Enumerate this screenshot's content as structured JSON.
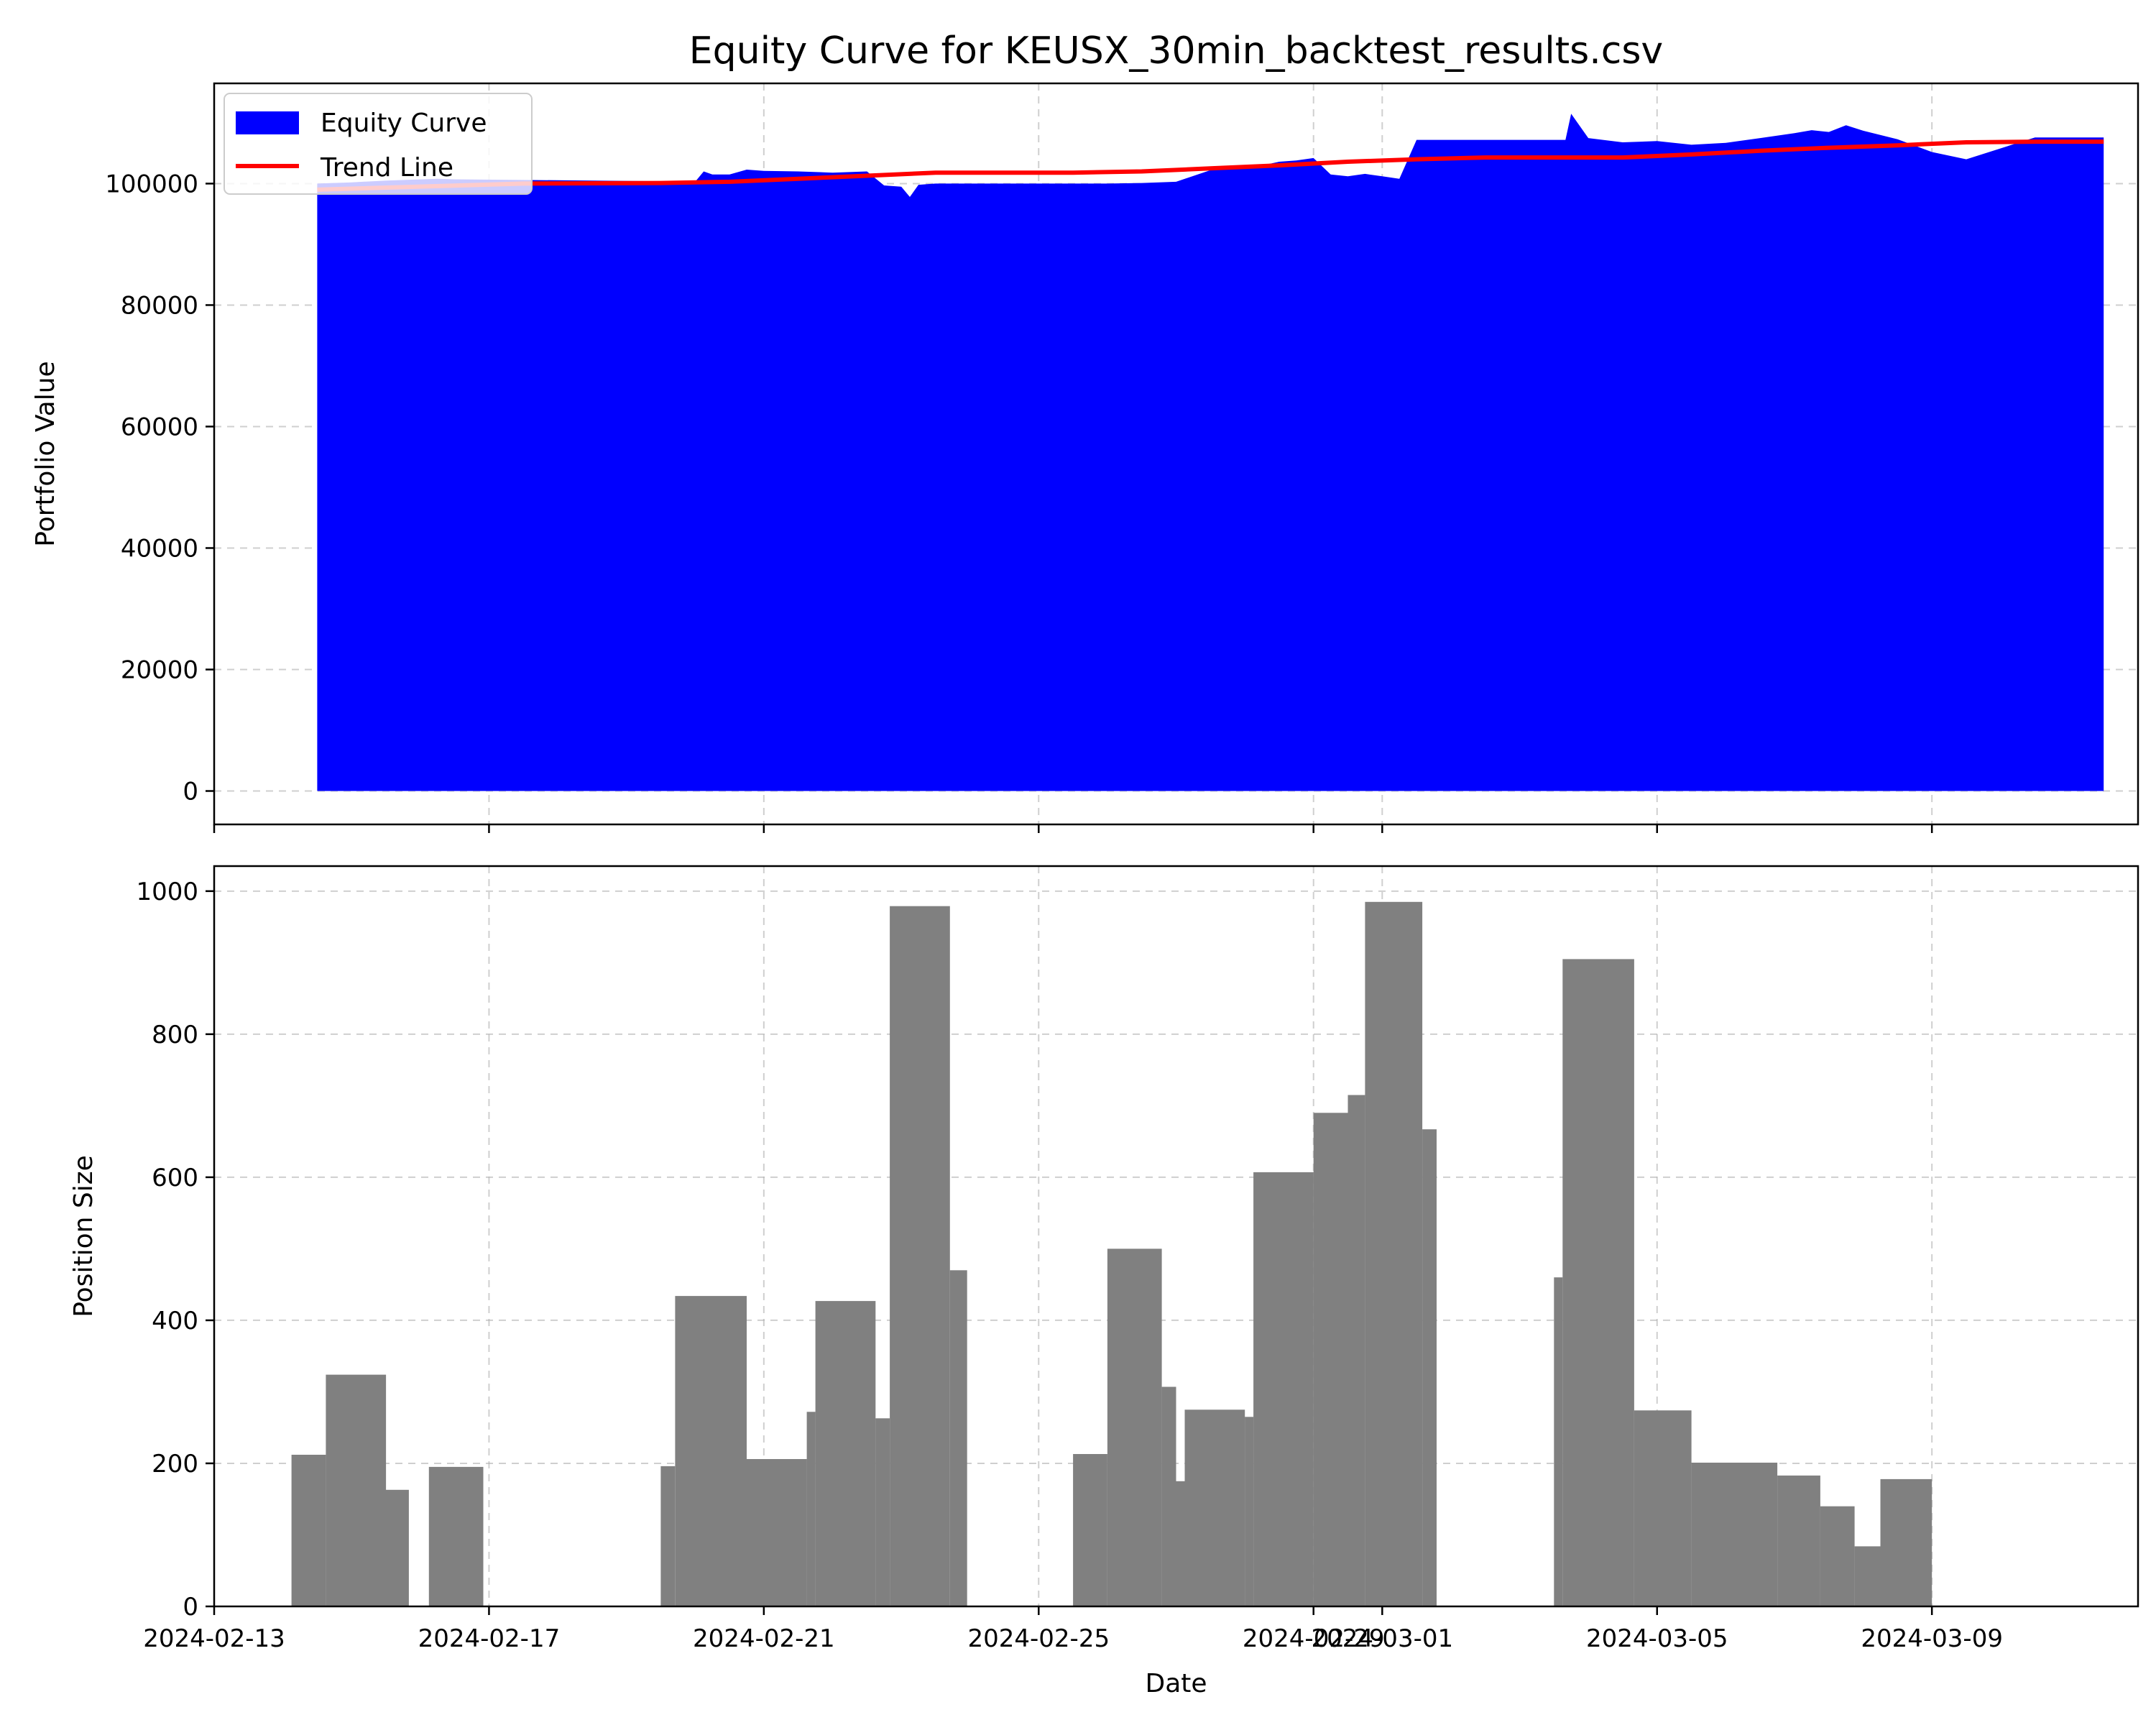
{
  "chart_data": [
    {
      "type": "area",
      "title": "Equity Curve for KEUSX_30min_backtest_results.csv",
      "xlabel": "",
      "ylabel": "Portfolio Value",
      "xlim": [
        "2024-02-13",
        "2024-03-12"
      ],
      "ylim": [
        -5500,
        116500
      ],
      "y_ticks": [
        0,
        20000,
        40000,
        60000,
        80000,
        100000
      ],
      "x_ticks": [
        "2024-02-13",
        "2024-02-17",
        "2024-02-21",
        "2024-02-25",
        "2024-02-29",
        "2024-03-01",
        "2024-03-05",
        "2024-03-09"
      ],
      "x_tick_labels_shown": false,
      "grid": true,
      "legend_position": "upper left",
      "colors": {
        "equity": "#0000ff",
        "trend": "#ff0000"
      },
      "series": [
        {
          "name": "Equity Curve",
          "kind": "fill_area",
          "x": [
            "2024-02-14 12:00",
            "2024-02-15 00:00",
            "2024-02-15 12:00",
            "2024-02-16 06:00",
            "2024-02-16 12:00",
            "2024-02-17 12:00",
            "2024-02-18 12:00",
            "2024-02-19 12:00",
            "2024-02-20 00:00",
            "2024-02-20 03:00",
            "2024-02-20 06:00",
            "2024-02-20 12:00",
            "2024-02-20 18:00",
            "2024-02-21 00:00",
            "2024-02-21 12:00",
            "2024-02-22 00:00",
            "2024-02-22 12:00",
            "2024-02-22 18:00",
            "2024-02-23 00:00",
            "2024-02-23 03:00",
            "2024-02-23 06:00",
            "2024-02-23 12:00",
            "2024-02-24 12:00",
            "2024-02-25 12:00",
            "2024-02-26 00:00",
            "2024-02-26 12:00",
            "2024-02-27 00:00",
            "2024-02-27 12:00",
            "2024-02-28 00:00",
            "2024-02-28 06:00",
            "2024-02-28 12:00",
            "2024-02-28 18:00",
            "2024-02-29 00:00",
            "2024-02-29 06:00",
            "2024-02-29 12:00",
            "2024-02-29 18:00",
            "2024-03-01 00:00",
            "2024-03-01 06:00",
            "2024-03-01 12:00",
            "2024-03-02 12:00",
            "2024-03-03 12:00",
            "2024-03-03 16:00",
            "2024-03-03 18:00",
            "2024-03-04 00:00",
            "2024-03-04 12:00",
            "2024-03-05 00:00",
            "2024-03-05 12:00",
            "2024-03-06 00:00",
            "2024-03-06 12:00",
            "2024-03-07 00:00",
            "2024-03-07 06:00",
            "2024-03-07 12:00",
            "2024-03-07 18:00",
            "2024-03-08 00:00",
            "2024-03-08 12:00",
            "2024-03-09 00:00",
            "2024-03-09 12:00",
            "2024-03-10 12:00",
            "2024-03-11 00:00",
            "2024-03-11 12:00"
          ],
          "y": [
            100000,
            100200,
            100500,
            100800,
            100700,
            100600,
            100500,
            100400,
            100300,
            102000,
            101500,
            101500,
            102300,
            102100,
            102000,
            101800,
            102000,
            99700,
            99500,
            97800,
            99800,
            100000,
            100000,
            100000,
            100000,
            100100,
            100300,
            102200,
            102800,
            103000,
            103600,
            103800,
            104200,
            101500,
            101200,
            101600,
            101200,
            100800,
            107200,
            107200,
            107200,
            107200,
            111500,
            107500,
            106800,
            107000,
            106400,
            106700,
            107500,
            108300,
            108800,
            108500,
            109600,
            108700,
            107300,
            105200,
            104000,
            107600,
            107600,
            107600
          ]
        },
        {
          "name": "Trend Line",
          "kind": "line",
          "x": [
            "2024-02-14 12:00",
            "2024-02-17 12:00",
            "2024-02-19 12:00",
            "2024-02-20 12:00",
            "2024-02-21 12:00",
            "2024-02-22 12:00",
            "2024-02-23 12:00",
            "2024-02-24 12:00",
            "2024-02-25 12:00",
            "2024-02-26 12:00",
            "2024-02-27 12:00",
            "2024-02-28 12:00",
            "2024-02-29 12:00",
            "2024-03-01 12:00",
            "2024-03-02 12:00",
            "2024-03-03 12:00",
            "2024-03-04 12:00",
            "2024-03-05 12:00",
            "2024-03-06 12:00",
            "2024-03-07 12:00",
            "2024-03-08 12:00",
            "2024-03-09 12:00",
            "2024-03-10 12:00",
            "2024-03-11 12:00"
          ],
          "y": [
            99000,
            100000,
            100100,
            100300,
            100800,
            101300,
            101800,
            101800,
            101800,
            102000,
            102500,
            103000,
            103600,
            104000,
            104300,
            104300,
            104300,
            104800,
            105400,
            105900,
            106300,
            106800,
            106900,
            106900
          ]
        }
      ]
    },
    {
      "type": "bar",
      "title": "",
      "xlabel": "Date",
      "ylabel": "Position Size",
      "xlim": [
        "2024-02-13",
        "2024-03-12"
      ],
      "ylim": [
        0,
        1035
      ],
      "y_ticks": [
        0,
        200,
        400,
        600,
        800,
        1000
      ],
      "x_ticks": [
        "2024-02-13",
        "2024-02-17",
        "2024-02-21",
        "2024-02-25",
        "2024-02-29",
        "2024-03-01",
        "2024-03-05",
        "2024-03-09"
      ],
      "grid": true,
      "colors": {
        "bars": "#808080"
      },
      "bars": [
        {
          "start": "2024-02-14 03:00",
          "end": "2024-02-14 15:00",
          "value": 212
        },
        {
          "start": "2024-02-14 15:00",
          "end": "2024-02-15 12:00",
          "value": 324
        },
        {
          "start": "2024-02-15 12:00",
          "end": "2024-02-15 20:00",
          "value": 163
        },
        {
          "start": "2024-02-16 03:00",
          "end": "2024-02-16 22:00",
          "value": 195
        },
        {
          "start": "2024-02-19 12:00",
          "end": "2024-02-19 17:00",
          "value": 196
        },
        {
          "start": "2024-02-19 17:00",
          "end": "2024-02-20 18:00",
          "value": 434
        },
        {
          "start": "2024-02-20 18:00",
          "end": "2024-02-21 15:00",
          "value": 206
        },
        {
          "start": "2024-02-21 15:00",
          "end": "2024-02-21 18:00",
          "value": 272
        },
        {
          "start": "2024-02-21 18:00",
          "end": "2024-02-22 15:00",
          "value": 427
        },
        {
          "start": "2024-02-22 15:00",
          "end": "2024-02-22 20:00",
          "value": 263
        },
        {
          "start": "2024-02-22 20:00",
          "end": "2024-02-23 17:00",
          "value": 979
        },
        {
          "start": "2024-02-23 17:00",
          "end": "2024-02-23 23:00",
          "value": 470
        },
        {
          "start": "2024-02-25 12:00",
          "end": "2024-02-26 00:00",
          "value": 213
        },
        {
          "start": "2024-02-26 00:00",
          "end": "2024-02-26 19:00",
          "value": 500
        },
        {
          "start": "2024-02-26 19:00",
          "end": "2024-02-27 00:00",
          "value": 307
        },
        {
          "start": "2024-02-27 00:00",
          "end": "2024-02-27 03:00",
          "value": 175
        },
        {
          "start": "2024-02-27 03:00",
          "end": "2024-02-28 00:00",
          "value": 275
        },
        {
          "start": "2024-02-28 00:00",
          "end": "2024-02-28 03:00",
          "value": 265
        },
        {
          "start": "2024-02-28 03:00",
          "end": "2024-02-29 00:00",
          "value": 607
        },
        {
          "start": "2024-02-29 00:00",
          "end": "2024-02-29 12:00",
          "value": 690
        },
        {
          "start": "2024-02-29 12:00",
          "end": "2024-02-29 18:00",
          "value": 715
        },
        {
          "start": "2024-02-29 18:00",
          "end": "2024-03-01 14:00",
          "value": 985
        },
        {
          "start": "2024-03-01 14:00",
          "end": "2024-03-01 19:00",
          "value": 667
        },
        {
          "start": "2024-03-03 12:00",
          "end": "2024-03-03 15:00",
          "value": 460
        },
        {
          "start": "2024-03-03 15:00",
          "end": "2024-03-04 16:00",
          "value": 905
        },
        {
          "start": "2024-03-04 16:00",
          "end": "2024-03-05 12:00",
          "value": 274
        },
        {
          "start": "2024-03-05 12:00",
          "end": "2024-03-06 18:00",
          "value": 201
        },
        {
          "start": "2024-03-06 18:00",
          "end": "2024-03-07 09:00",
          "value": 183
        },
        {
          "start": "2024-03-07 09:00",
          "end": "2024-03-07 21:00",
          "value": 140
        },
        {
          "start": "2024-03-07 21:00",
          "end": "2024-03-08 06:00",
          "value": 84
        },
        {
          "start": "2024-03-08 06:00",
          "end": "2024-03-09 00:00",
          "value": 178
        }
      ]
    }
  ]
}
